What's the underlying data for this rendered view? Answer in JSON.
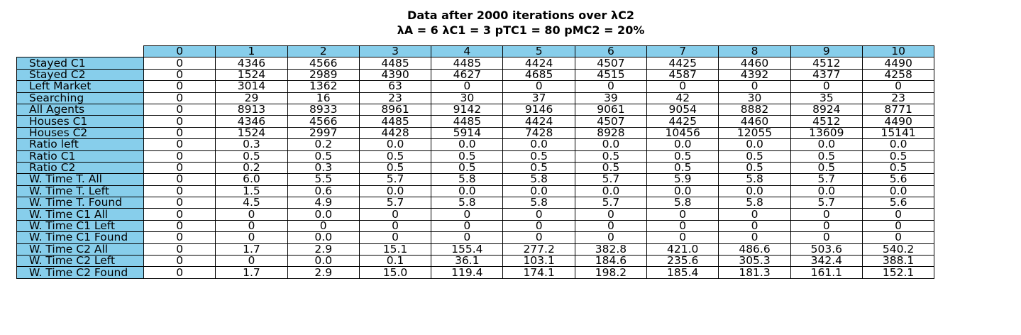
{
  "header_color": "#87ceeb",
  "chart_data": {
    "type": "table",
    "title": "Data after 2000 iterations over λC2",
    "subtitle": "λA = 6 λC1 = 3 pTC1 = 80 pMC2 = 20%",
    "columns": [
      "0",
      "1",
      "2",
      "3",
      "4",
      "5",
      "6",
      "7",
      "8",
      "9",
      "10"
    ],
    "rows": [
      {
        "label": "Stayed C1",
        "values": [
          "0",
          "4346",
          "4566",
          "4485",
          "4485",
          "4424",
          "4507",
          "4425",
          "4460",
          "4512",
          "4490"
        ]
      },
      {
        "label": "Stayed C2",
        "values": [
          "0",
          "1524",
          "2989",
          "4390",
          "4627",
          "4685",
          "4515",
          "4587",
          "4392",
          "4377",
          "4258"
        ]
      },
      {
        "label": "Left Market",
        "values": [
          "0",
          "3014",
          "1362",
          "63",
          "0",
          "0",
          "0",
          "0",
          "0",
          "0",
          "0"
        ]
      },
      {
        "label": "Searching",
        "values": [
          "0",
          "29",
          "16",
          "23",
          "30",
          "37",
          "39",
          "42",
          "30",
          "35",
          "23"
        ]
      },
      {
        "label": "All Agents",
        "values": [
          "0",
          "8913",
          "8933",
          "8961",
          "9142",
          "9146",
          "9061",
          "9054",
          "8882",
          "8924",
          "8771"
        ]
      },
      {
        "label": "Houses C1",
        "values": [
          "0",
          "4346",
          "4566",
          "4485",
          "4485",
          "4424",
          "4507",
          "4425",
          "4460",
          "4512",
          "4490"
        ]
      },
      {
        "label": "Houses C2",
        "values": [
          "0",
          "1524",
          "2997",
          "4428",
          "5914",
          "7428",
          "8928",
          "10456",
          "12055",
          "13609",
          "15141"
        ]
      },
      {
        "label": "Ratio left",
        "values": [
          "0",
          "0.3",
          "0.2",
          "0.0",
          "0.0",
          "0.0",
          "0.0",
          "0.0",
          "0.0",
          "0.0",
          "0.0"
        ]
      },
      {
        "label": "Ratio C1",
        "values": [
          "0",
          "0.5",
          "0.5",
          "0.5",
          "0.5",
          "0.5",
          "0.5",
          "0.5",
          "0.5",
          "0.5",
          "0.5"
        ]
      },
      {
        "label": "Ratio C2",
        "values": [
          "0",
          "0.2",
          "0.3",
          "0.5",
          "0.5",
          "0.5",
          "0.5",
          "0.5",
          "0.5",
          "0.5",
          "0.5"
        ]
      },
      {
        "label": "W. Time T. All",
        "values": [
          "0",
          "6.0",
          "5.5",
          "5.7",
          "5.8",
          "5.8",
          "5.7",
          "5.9",
          "5.8",
          "5.7",
          "5.6"
        ]
      },
      {
        "label": "W. Time T. Left",
        "values": [
          "0",
          "1.5",
          "0.6",
          "0.0",
          "0.0",
          "0.0",
          "0.0",
          "0.0",
          "0.0",
          "0.0",
          "0.0"
        ]
      },
      {
        "label": "W. Time T. Found",
        "values": [
          "0",
          "4.5",
          "4.9",
          "5.7",
          "5.8",
          "5.8",
          "5.7",
          "5.8",
          "5.8",
          "5.7",
          "5.6"
        ]
      },
      {
        "label": "W. Time C1 All",
        "values": [
          "0",
          "0",
          "0.0",
          "0",
          "0",
          "0",
          "0",
          "0",
          "0",
          "0",
          "0"
        ]
      },
      {
        "label": "W. Time C1 Left",
        "values": [
          "0",
          "0",
          "0",
          "0",
          "0",
          "0",
          "0",
          "0",
          "0",
          "0",
          "0"
        ]
      },
      {
        "label": "W. Time C1 Found",
        "values": [
          "0",
          "0",
          "0.0",
          "0",
          "0",
          "0",
          "0",
          "0",
          "0",
          "0",
          "0"
        ]
      },
      {
        "label": "W. Time C2 All",
        "values": [
          "0",
          "1.7",
          "2.9",
          "15.1",
          "155.4",
          "277.2",
          "382.8",
          "421.0",
          "486.6",
          "503.6",
          "540.2"
        ]
      },
      {
        "label": "W. Time C2 Left",
        "values": [
          "0",
          "0",
          "0.0",
          "0.1",
          "36.1",
          "103.1",
          "184.6",
          "235.6",
          "305.3",
          "342.4",
          "388.1"
        ]
      },
      {
        "label": "W. Time C2 Found",
        "values": [
          "0",
          "1.7",
          "2.9",
          "15.0",
          "119.4",
          "174.1",
          "198.2",
          "185.4",
          "181.3",
          "161.1",
          "152.1"
        ]
      }
    ]
  }
}
